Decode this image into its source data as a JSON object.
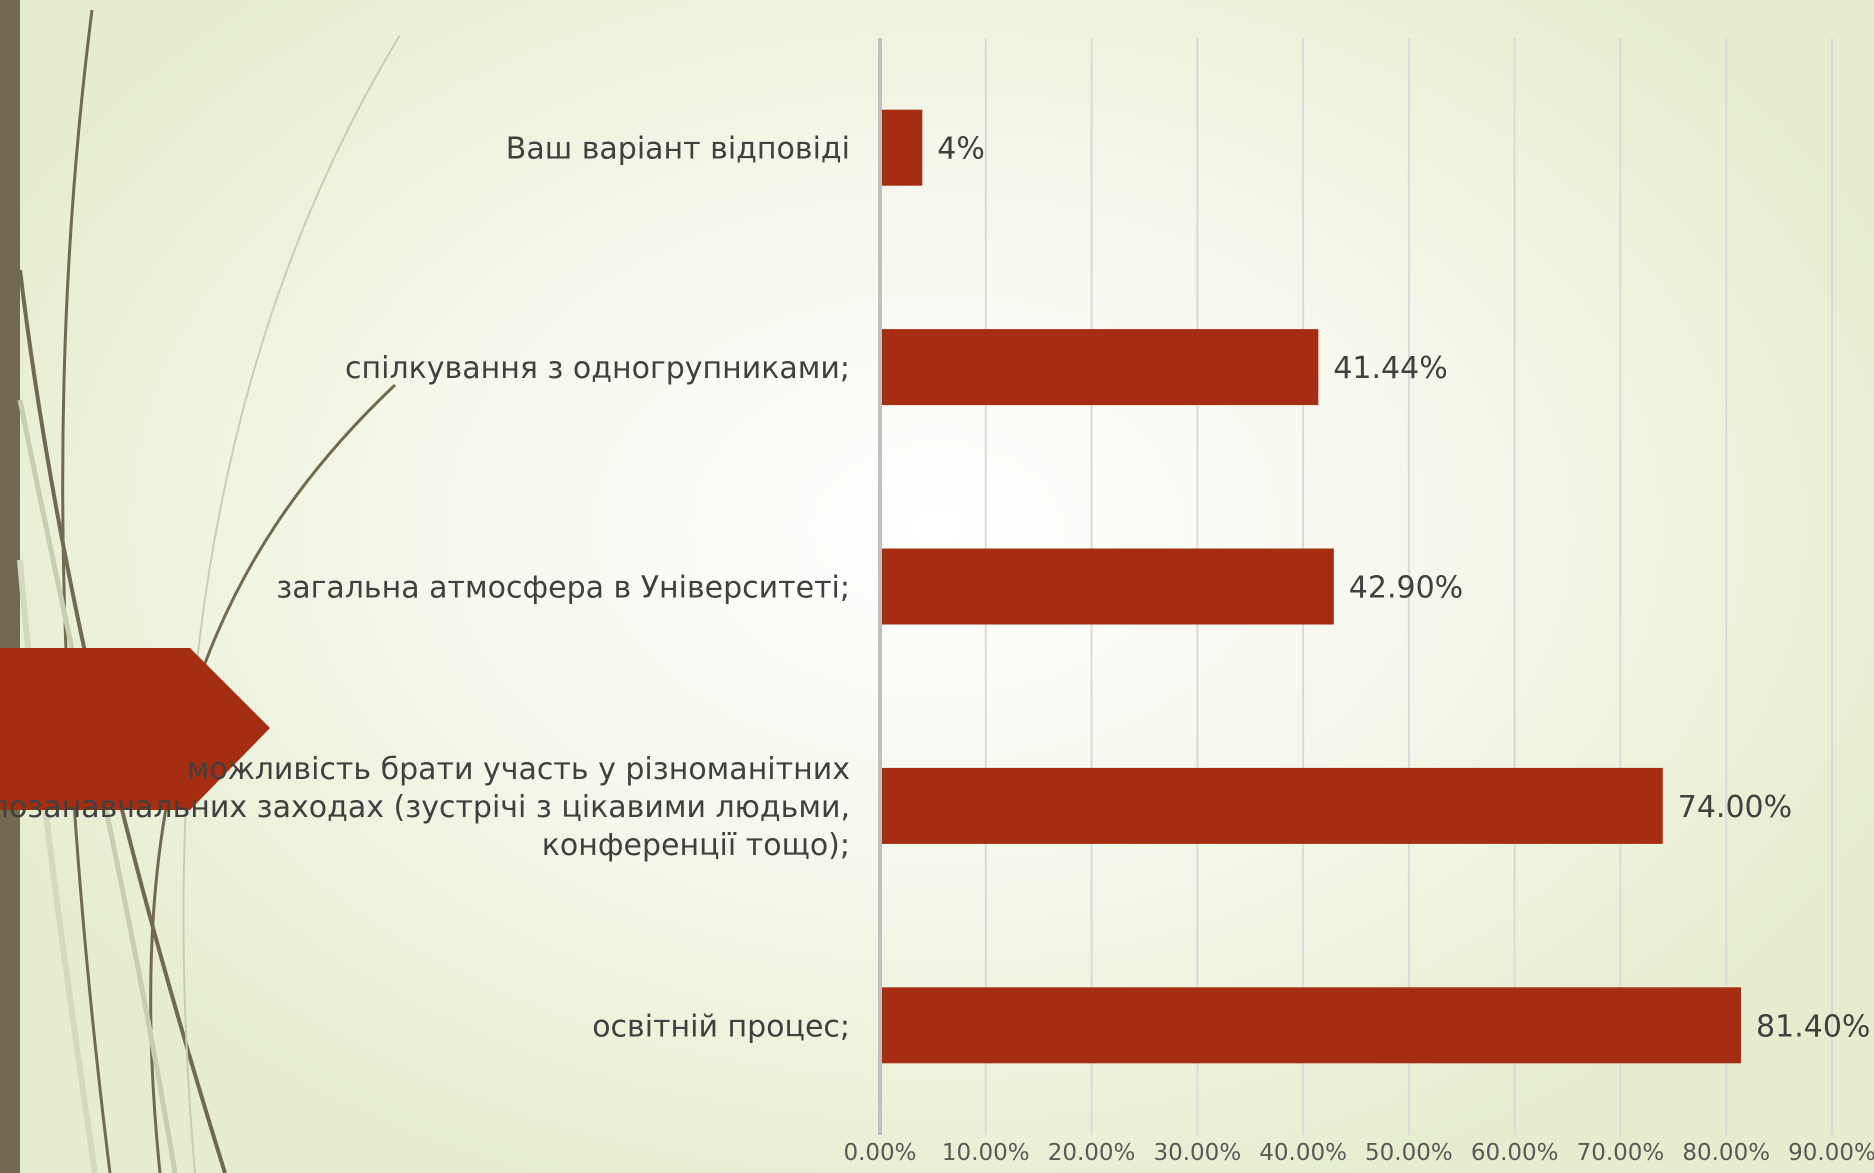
{
  "chart_data": {
    "type": "bar",
    "orientation": "horizontal",
    "categories": [
      "освітній процес;",
      "можливість брати участь у різноманітних позанавчальних заходах (зустрічі з цікавими людьми, конференції тощо);",
      "загальна атмосфера в Університеті;",
      "спілкування з одногрупниками;",
      "Ваш варіант відповіді"
    ],
    "category_lines": [
      [
        "освітній процес;"
      ],
      [
        "можливість брати участь у різноманітних",
        "позанавчальних заходах (зустрічі з цікавими людьми,",
        "конференції тощо);"
      ],
      [
        "загальна атмосфера в Університеті;"
      ],
      [
        "спілкування з одногрупниками;"
      ],
      [
        "Ваш варіант відповіді"
      ]
    ],
    "values": [
      81.4,
      74.0,
      42.9,
      41.44,
      4
    ],
    "data_labels": [
      "81.40%",
      "74.00%",
      "42.90%",
      "41.44%",
      "4%"
    ],
    "x_ticks": [
      "0.00%",
      "10.00%",
      "20.00%",
      "30.00%",
      "40.00%",
      "50.00%",
      "60.00%",
      "70.00%",
      "80.00%",
      "90.00%"
    ],
    "xlim": [
      0,
      90
    ],
    "grid": true,
    "title": "",
    "xlabel": "",
    "ylabel": "",
    "bar_color": "#a52e12"
  },
  "theme": {
    "accent": "#a52e12",
    "sidebar_color": "#726a50",
    "grid_color": "#d9d9d9",
    "axis_color": "#bfbfbf"
  }
}
